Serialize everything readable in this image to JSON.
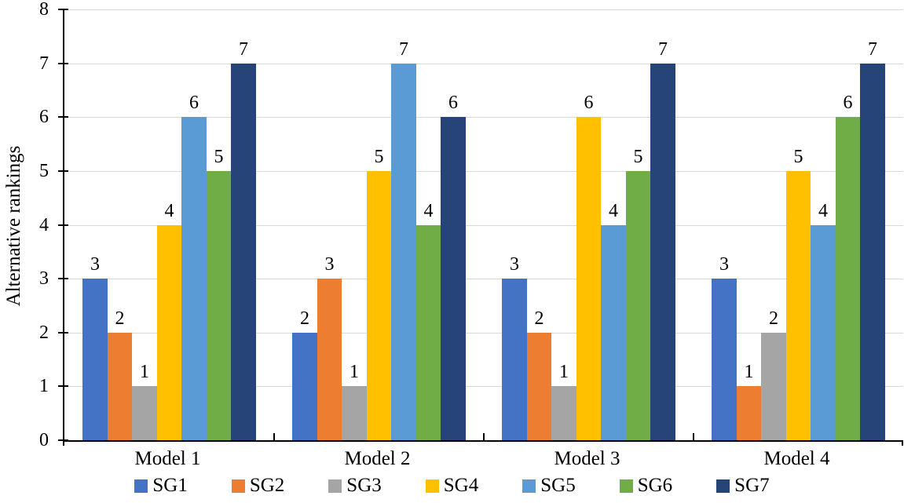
{
  "chart_data": {
    "type": "bar",
    "title": "",
    "xlabel": "",
    "ylabel": "Alternative rankings",
    "categories": [
      "Model 1",
      "Model 2",
      "Model 3",
      "Model 4"
    ],
    "series": [
      {
        "name": "SG1",
        "color": "#4472C4",
        "values": [
          3,
          2,
          3,
          3
        ]
      },
      {
        "name": "SG2",
        "color": "#ED7D31",
        "values": [
          2,
          3,
          2,
          1
        ]
      },
      {
        "name": "SG3",
        "color": "#A5A5A5",
        "values": [
          1,
          1,
          1,
          2
        ]
      },
      {
        "name": "SG4",
        "color": "#FFC000",
        "values": [
          4,
          5,
          6,
          5
        ]
      },
      {
        "name": "SG5",
        "color": "#5B9BD5",
        "values": [
          6,
          7,
          4,
          4
        ]
      },
      {
        "name": "SG6",
        "color": "#70AD47",
        "values": [
          5,
          4,
          5,
          6
        ]
      },
      {
        "name": "SG7",
        "color": "#264478",
        "values": [
          7,
          6,
          7,
          7
        ]
      }
    ],
    "ylim": [
      0,
      8
    ],
    "ytick_step": 1,
    "yticks": [
      0,
      1,
      2,
      3,
      4,
      5,
      6,
      7,
      8
    ],
    "grid": true,
    "data_labels": true,
    "legend_position": "bottom",
    "colors": {
      "gridline": "#D9D9D9",
      "axis": "#000000",
      "text": "#000000",
      "background": "#FFFFFF"
    }
  }
}
